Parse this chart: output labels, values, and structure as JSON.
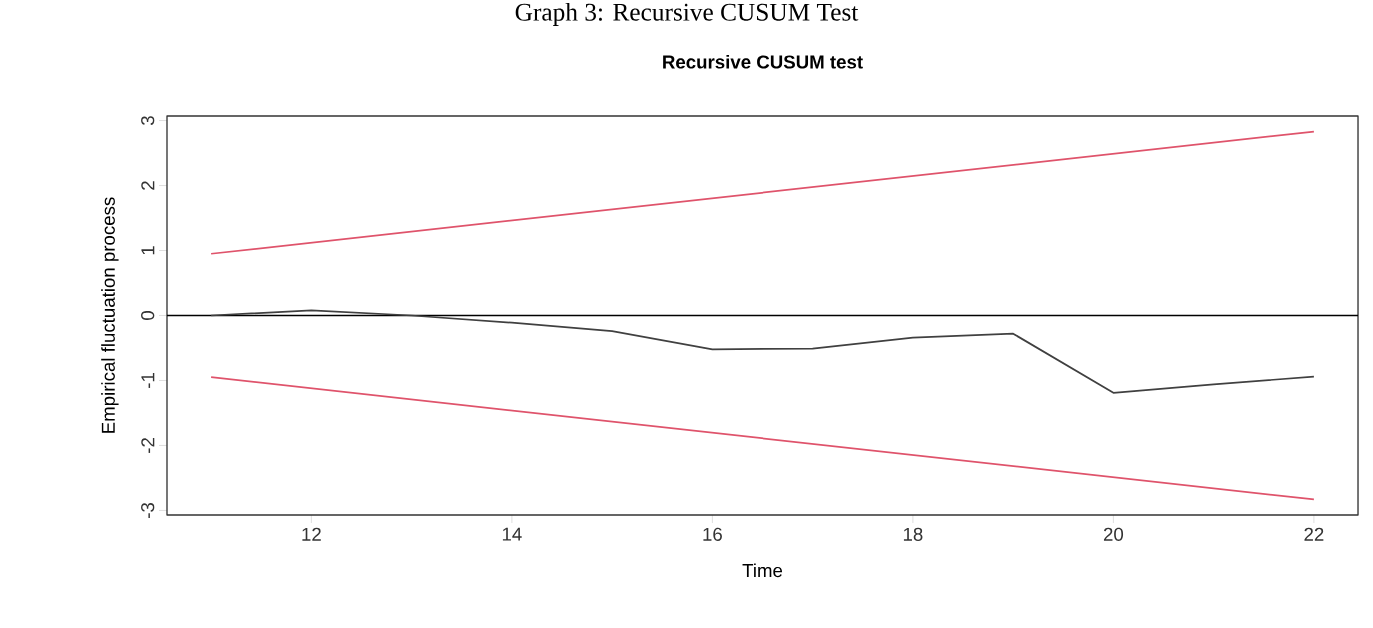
{
  "chart_data": {
    "type": "line",
    "title": "Recursive CUSUM test",
    "xlabel": "Time",
    "ylabel": "Empirical fluctuation process",
    "annotations": [
      "Graph 3: Recursive CUSUM Test"
    ],
    "series": [
      {
        "color": "#404040",
        "x": [
          11,
          12,
          13,
          14,
          15,
          16,
          17,
          18,
          19,
          20,
          21,
          22
        ],
        "values": [
          0,
          0.08,
          0,
          -0.11,
          -0.24,
          -0.52,
          -0.51,
          -0.34,
          -0.28,
          -1.19,
          -1.06,
          -0.94
        ]
      },
      {
        "color": "#df536b",
        "x": [
          11,
          22
        ],
        "values": [
          0.95,
          2.83
        ]
      },
      {
        "color": "#df536b",
        "x": [
          11,
          22
        ],
        "values": [
          -0.95,
          -2.83
        ]
      }
    ],
    "ref_lines": [
      {
        "axis": "y",
        "value": 0,
        "color": "#000000"
      }
    ],
    "xlim": [
      10.56,
      22.44
    ],
    "ylim": [
      -3.07,
      3.07
    ],
    "xticks": [
      12,
      14,
      16,
      18,
      20,
      22
    ],
    "yticks": [
      -3,
      -2,
      -1,
      0,
      1,
      2,
      3
    ],
    "marker": "none",
    "line_style": "solid"
  }
}
